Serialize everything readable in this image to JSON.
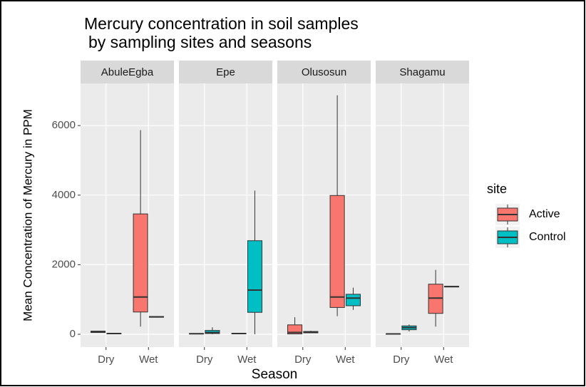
{
  "chart_data": {
    "type": "boxplot",
    "title": [
      "Mercury concentration in soil samples",
      "by sampling sites and seasons"
    ],
    "x_label": "Season",
    "y_label": "Mean Concentration of Mercury in PPM",
    "facets": [
      "AbuleEgba",
      "Epe",
      "Olusosun",
      "Shagamu"
    ],
    "categories": [
      "Dry",
      "Wet"
    ],
    "legend_title": "site",
    "series": [
      {
        "name": "Active",
        "color": "#F8766D",
        "boxes": [
          [
            [
              40,
              50,
              70,
              90,
              100
            ],
            [
              220,
              640,
              1070,
              3460,
              5870
            ]
          ],
          [
            [
              5,
              10,
              15,
              20,
              25
            ],
            [
              10,
              15,
              20,
              25,
              30
            ]
          ],
          [
            [
              0,
              10,
              50,
              270,
              490
            ],
            [
              520,
              770,
              1070,
              3990,
              6870
            ]
          ],
          [
            [
              5,
              8,
              10,
              12,
              15
            ],
            [
              220,
              600,
              1040,
              1440,
              1850
            ]
          ]
        ]
      },
      {
        "name": "Control",
        "color": "#00BFC4",
        "boxes": [
          [
            [
              10,
              15,
              20,
              25,
              30
            ],
            [
              480,
              490,
              500,
              510,
              520
            ]
          ],
          [
            [
              0,
              20,
              50,
              110,
              200
            ],
            [
              0,
              630,
              1270,
              2690,
              4130
            ]
          ],
          [
            [
              30,
              40,
              60,
              80,
              100
            ],
            [
              700,
              820,
              1040,
              1150,
              1340
            ]
          ],
          [
            [
              80,
              130,
              190,
              240,
              280
            ],
            [
              1350,
              1360,
              1370,
              1380,
              1390
            ]
          ]
        ]
      }
    ],
    "ylim": [
      -369,
      7213
    ],
    "yticks": [
      0,
      2000,
      4000,
      6000
    ],
    "grid": true
  }
}
